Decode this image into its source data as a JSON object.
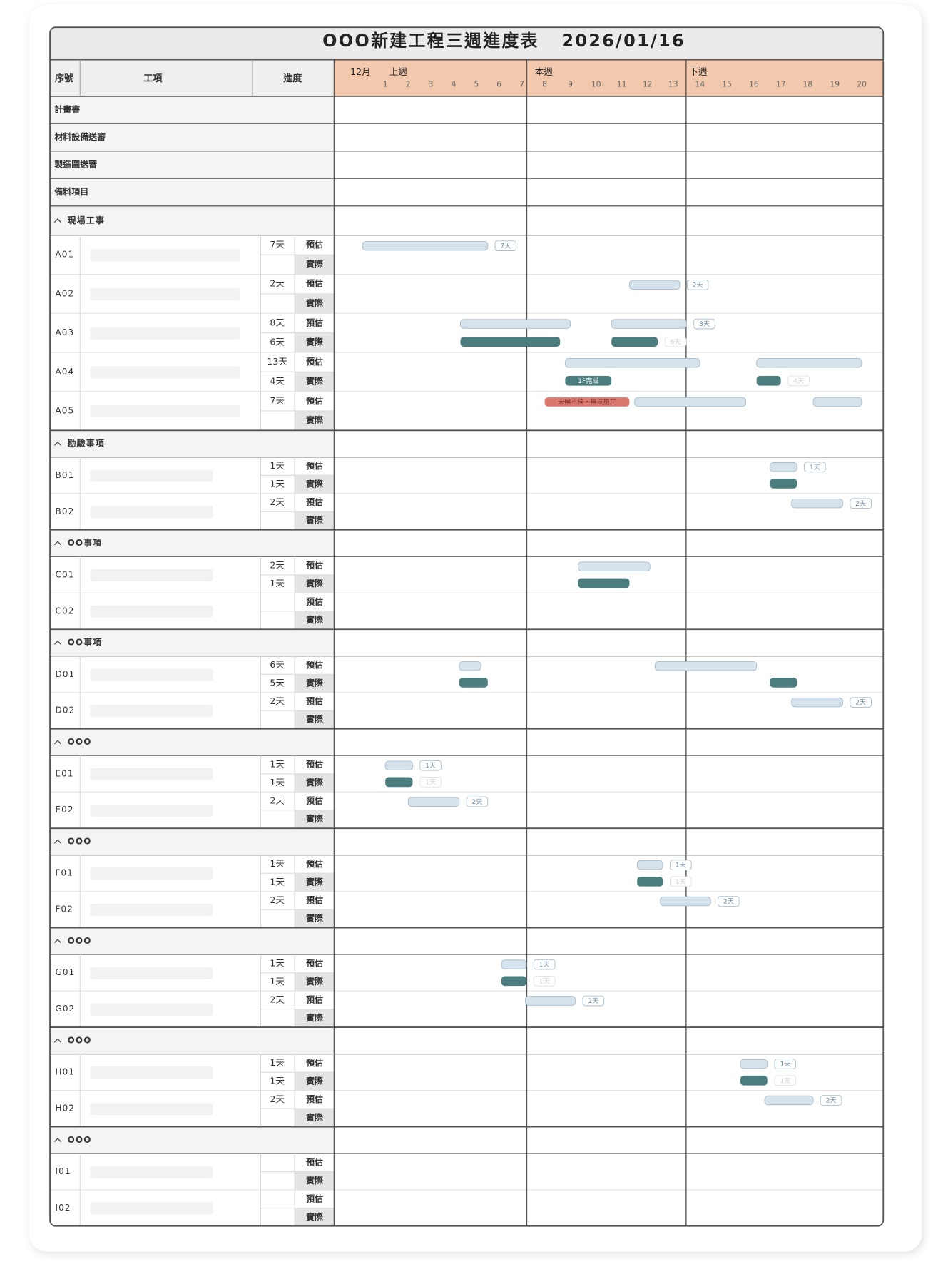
{
  "header": {
    "title": "OOO新建工程三週進度表",
    "date": "2026/01/16"
  },
  "columns": [
    "序號",
    "工項",
    "進度"
  ],
  "calendar": {
    "month": "12月",
    "weeks": [
      {
        "name": "上週",
        "days": [
          1,
          2,
          3,
          4,
          5,
          6,
          7
        ]
      },
      {
        "name": "本週",
        "days": [
          8,
          9,
          10,
          11,
          12,
          13
        ]
      },
      {
        "name": "下週",
        "days": [
          14,
          15,
          16,
          17,
          18,
          19,
          20
        ]
      }
    ]
  },
  "plan_rows": [
    "計畫書",
    "材料設備送審",
    "製造圖送審",
    "備料項目"
  ],
  "row_types": [
    "預估",
    "實際"
  ],
  "colors": {
    "estimate": "#d6e2ec",
    "actual": "#4b7d7f"
  },
  "sections": [
    {
      "title": "現場工事",
      "items": [
        {
          "code": "A01",
          "estimate_days": "7天",
          "estimate_bars": [
            {
              "start": 0,
              "end": 5.5,
              "label": "7天"
            }
          ],
          "actual_bars": []
        },
        {
          "code": "A02",
          "estimate_days": "2天",
          "estimate_bars": [
            {
              "start": 11.3,
              "end": 13.25,
              "label": "2天"
            }
          ],
          "actual_bars": []
        },
        {
          "code": "A03",
          "estimate_days": "8天",
          "actual_days": "6天",
          "estimate_bars": [
            {
              "start": 4.3,
              "end": 9.0
            },
            {
              "start": 10.6,
              "end": 13.5,
              "label": "8天"
            }
          ],
          "actual_bars": [
            {
              "start": 4.3,
              "end": 8.6
            },
            {
              "start": 10.6,
              "end": 12.4,
              "label": "6天"
            }
          ]
        },
        {
          "code": "A04",
          "estimate_days": "13天",
          "actual_days": "4天",
          "estimate_bars": [
            {
              "start": 8.8,
              "end": 14.0
            },
            {
              "start": 16.1,
              "end": 20.0
            }
          ],
          "actual_bars": [
            {
              "start": 8.8,
              "end": 10.6,
              "label": "1F完成",
              "label_inside": true
            },
            {
              "start": 16.1,
              "end": 17.0,
              "label": "4天"
            }
          ]
        },
        {
          "code": "A05",
          "estimate_days": "7天",
          "estimate_bars": [
            {
              "start": 8.0,
              "end": 11.3,
              "label": "天候不佳，無法施工",
              "label_inside": true,
              "color": "#d9776c"
            },
            {
              "start": 11.5,
              "end": 15.7
            },
            {
              "start": 18.2,
              "end": 20.0
            }
          ],
          "actual_bars": []
        }
      ]
    },
    {
      "title": "勘驗事項",
      "items": [
        {
          "code": "B01",
          "estimate_days": "1天",
          "actual_days": "1天",
          "estimate_bars": [
            {
              "start": 16.6,
              "end": 17.6,
              "label": "1天"
            }
          ],
          "actual_bars": [
            {
              "start": 16.6,
              "end": 17.6
            }
          ]
        },
        {
          "code": "B02",
          "estimate_days": "2天",
          "estimate_bars": [
            {
              "start": 17.4,
              "end": 19.3,
              "label": "2天"
            }
          ],
          "actual_bars": []
        }
      ]
    },
    {
      "title": "OO事項",
      "items": [
        {
          "code": "C01",
          "estimate_days": "2天",
          "actual_days": "1天",
          "estimate_bars": [
            {
              "start": 9.3,
              "end": 12.1
            }
          ],
          "actual_bars": [
            {
              "start": 9.3,
              "end": 11.3
            }
          ]
        },
        {
          "code": "C02",
          "estimate_bars": [],
          "actual_bars": []
        }
      ]
    },
    {
      "title": "OO事項",
      "items": [
        {
          "code": "D01",
          "estimate_days": "6天",
          "actual_days": "5天",
          "estimate_bars": [
            {
              "start": 4.25,
              "end": 5.2
            },
            {
              "start": 12.3,
              "end": 16.1
            }
          ],
          "actual_bars": [
            {
              "start": 4.25,
              "end": 5.5
            },
            {
              "start": 16.6,
              "end": 17.6
            }
          ]
        },
        {
          "code": "D02",
          "estimate_days": "2天",
          "estimate_bars": [
            {
              "start": 17.4,
              "end": 19.3,
              "label": "2天"
            }
          ],
          "actual_bars": []
        }
      ]
    },
    {
      "title": "OOO",
      "items": [
        {
          "code": "E01",
          "estimate_days": "1天",
          "actual_days": "1天",
          "estimate_bars": [
            {
              "start": 1.0,
              "end": 2.2,
              "label": "1天"
            }
          ],
          "actual_bars": [
            {
              "start": 1.0,
              "end": 2.2,
              "label": "1天"
            }
          ]
        },
        {
          "code": "E02",
          "estimate_days": "2天",
          "estimate_bars": [
            {
              "start": 2.0,
              "end": 4.25,
              "label": "2天"
            }
          ],
          "actual_bars": []
        }
      ]
    },
    {
      "title": "OOO",
      "items": [
        {
          "code": "F01",
          "estimate_days": "1天",
          "actual_days": "1天",
          "estimate_bars": [
            {
              "start": 11.6,
              "end": 12.6,
              "label": "1天"
            }
          ],
          "actual_bars": [
            {
              "start": 11.6,
              "end": 12.6,
              "label": "1天"
            }
          ]
        },
        {
          "code": "F02",
          "estimate_days": "2天",
          "estimate_bars": [
            {
              "start": 12.5,
              "end": 14.4,
              "label": "2天"
            }
          ],
          "actual_bars": []
        }
      ]
    },
    {
      "title": "OOO",
      "items": [
        {
          "code": "G01",
          "estimate_days": "1天",
          "actual_days": "1天",
          "estimate_bars": [
            {
              "start": 6.1,
              "end": 7.2,
              "label": "1天"
            }
          ],
          "actual_bars": [
            {
              "start": 6.1,
              "end": 7.2,
              "label": "1天"
            }
          ]
        },
        {
          "code": "G02",
          "estimate_days": "2天",
          "estimate_bars": [
            {
              "start": 7.15,
              "end": 9.2,
              "label": "2天"
            }
          ],
          "actual_bars": []
        }
      ]
    },
    {
      "title": "OOO",
      "items": [
        {
          "code": "H01",
          "estimate_days": "1天",
          "actual_days": "1天",
          "estimate_bars": [
            {
              "start": 15.5,
              "end": 16.5,
              "label": "1天"
            }
          ],
          "actual_bars": [
            {
              "start": 15.5,
              "end": 16.5,
              "label": "1天"
            }
          ]
        },
        {
          "code": "H02",
          "estimate_days": "2天",
          "estimate_bars": [
            {
              "start": 16.4,
              "end": 18.2,
              "label": "2天"
            }
          ],
          "actual_bars": []
        }
      ]
    },
    {
      "title": "OOO",
      "items": [
        {
          "code": "I01",
          "estimate_bars": [],
          "actual_bars": []
        },
        {
          "code": "I02",
          "estimate_bars": [],
          "actual_bars": []
        }
      ]
    }
  ]
}
